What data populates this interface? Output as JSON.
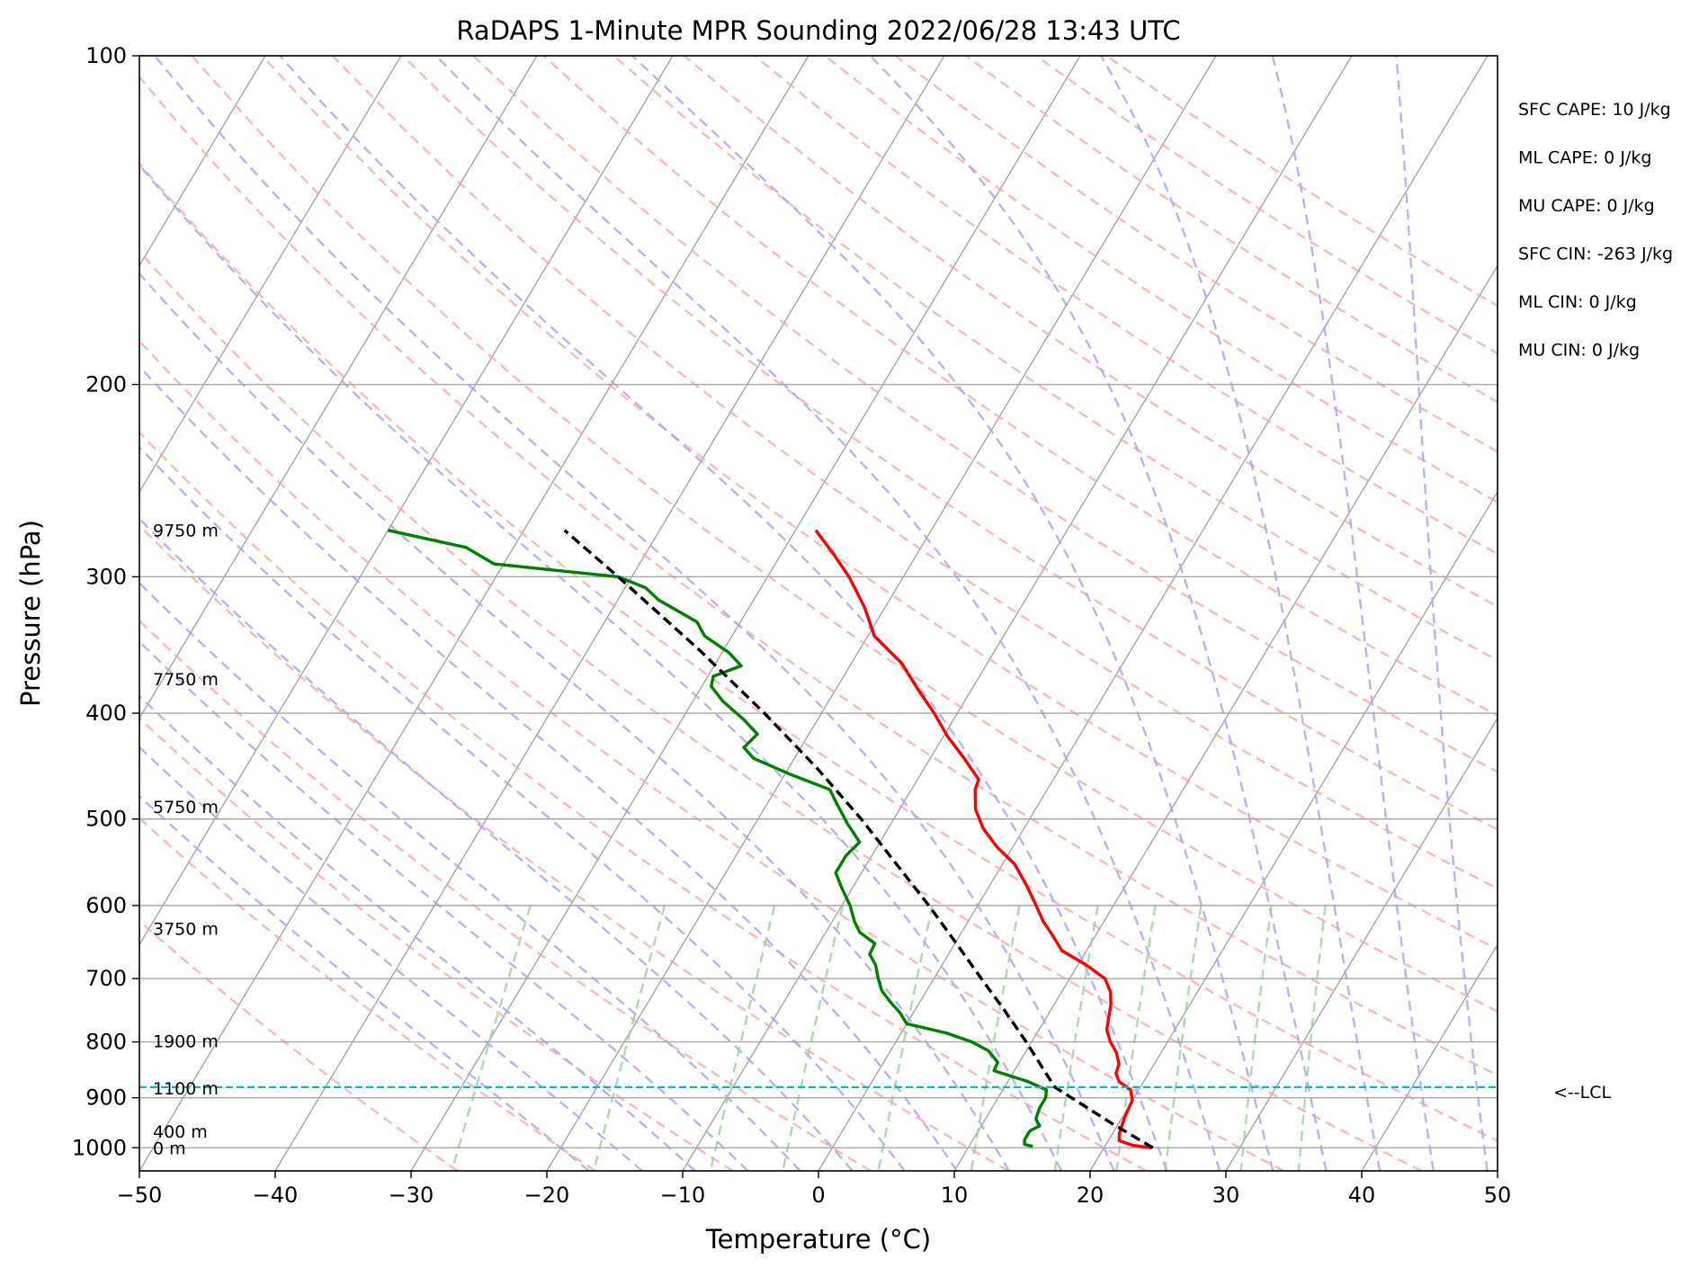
{
  "chart_data": {
    "type": "line",
    "chart_kind": "skew-T log-p sounding",
    "title": "RaDAPS 1-Minute MPR Sounding 2022/06/28 13:43 UTC",
    "xlabel": "Temperature (°C)",
    "ylabel": "Pressure (hPa)",
    "xlim": [
      -50,
      50
    ],
    "ylim": [
      1050,
      100
    ],
    "y_scale": "log",
    "x_ticks": [
      -50,
      -40,
      -30,
      -20,
      -10,
      0,
      10,
      20,
      30,
      40,
      50
    ],
    "x_tick_labels": [
      "−50",
      "−40",
      "−30",
      "−20",
      "−10",
      "0",
      "10",
      "20",
      "30",
      "40",
      "50"
    ],
    "y_ticks": [
      100,
      200,
      300,
      400,
      500,
      600,
      700,
      800,
      900,
      1000
    ],
    "y_tick_labels": [
      "100",
      "200",
      "300",
      "400",
      "500",
      "600",
      "700",
      "800",
      "900",
      "1000"
    ],
    "grid": true,
    "background_lines": {
      "isotherms": {
        "color": "#a0a0a0"
      },
      "dry_adiabats": {
        "color": "#f4a4a4",
        "style": "dashed"
      },
      "moist_adiabats": {
        "color": "#a8a8f0",
        "style": "dashed"
      },
      "mixing_ratio": {
        "color": "#9ccf9c",
        "style": "dashed"
      }
    },
    "series": [
      {
        "key": "temperature",
        "color": "#ff0000",
        "style": "solid",
        "points": [
          {
            "p": 1000,
            "t": 23.5
          },
          {
            "p": 995,
            "t": 22.0
          },
          {
            "p": 985,
            "t": 20.8
          },
          {
            "p": 970,
            "t": 20.5
          },
          {
            "p": 940,
            "t": 20.2
          },
          {
            "p": 905,
            "t": 20.0
          },
          {
            "p": 885,
            "t": 19.4
          },
          {
            "p": 870,
            "t": 18.2
          },
          {
            "p": 855,
            "t": 17.6
          },
          {
            "p": 838,
            "t": 17.4
          },
          {
            "p": 818,
            "t": 16.7
          },
          {
            "p": 800,
            "t": 15.8
          },
          {
            "p": 780,
            "t": 15.0
          },
          {
            "p": 760,
            "t": 14.6
          },
          {
            "p": 740,
            "t": 14.2
          },
          {
            "p": 720,
            "t": 13.6
          },
          {
            "p": 700,
            "t": 12.6
          },
          {
            "p": 680,
            "t": 10.6
          },
          {
            "p": 660,
            "t": 8.2
          },
          {
            "p": 640,
            "t": 6.9
          },
          {
            "p": 620,
            "t": 5.5
          },
          {
            "p": 600,
            "t": 4.3
          },
          {
            "p": 575,
            "t": 2.7
          },
          {
            "p": 550,
            "t": 0.9
          },
          {
            "p": 530,
            "t": -1.2
          },
          {
            "p": 510,
            "t": -3.0
          },
          {
            "p": 490,
            "t": -4.4
          },
          {
            "p": 470,
            "t": -5.3
          },
          {
            "p": 460,
            "t": -5.5
          },
          {
            "p": 440,
            "t": -7.5
          },
          {
            "p": 420,
            "t": -9.7
          },
          {
            "p": 400,
            "t": -11.7
          },
          {
            "p": 380,
            "t": -14.0
          },
          {
            "p": 360,
            "t": -16.3
          },
          {
            "p": 340,
            "t": -19.5
          },
          {
            "p": 320,
            "t": -21.5
          },
          {
            "p": 300,
            "t": -24.0
          },
          {
            "p": 285,
            "t": -26.3
          },
          {
            "p": 272,
            "t": -28.5
          }
        ]
      },
      {
        "key": "dewpoint",
        "color": "#008000",
        "style": "solid",
        "points": [
          {
            "p": 997,
            "t": 14.7
          },
          {
            "p": 993,
            "t": 14.0
          },
          {
            "p": 983,
            "t": 13.8
          },
          {
            "p": 965,
            "t": 13.8
          },
          {
            "p": 955,
            "t": 14.3
          },
          {
            "p": 948,
            "t": 14.0
          },
          {
            "p": 940,
            "t": 13.7
          },
          {
            "p": 920,
            "t": 13.5
          },
          {
            "p": 900,
            "t": 13.5
          },
          {
            "p": 885,
            "t": 13.2
          },
          {
            "p": 870,
            "t": 11.5
          },
          {
            "p": 850,
            "t": 8.5
          },
          {
            "p": 835,
            "t": 8.4
          },
          {
            "p": 815,
            "t": 7.2
          },
          {
            "p": 800,
            "t": 5.6
          },
          {
            "p": 785,
            "t": 3.3
          },
          {
            "p": 770,
            "t": 0.0
          },
          {
            "p": 752,
            "t": -1.0
          },
          {
            "p": 735,
            "t": -2.2
          },
          {
            "p": 718,
            "t": -3.3
          },
          {
            "p": 700,
            "t": -4.1
          },
          {
            "p": 680,
            "t": -4.9
          },
          {
            "p": 665,
            "t": -5.8
          },
          {
            "p": 650,
            "t": -5.9
          },
          {
            "p": 635,
            "t": -7.5
          },
          {
            "p": 620,
            "t": -8.4
          },
          {
            "p": 600,
            "t": -9.4
          },
          {
            "p": 578,
            "t": -10.8
          },
          {
            "p": 560,
            "t": -11.9
          },
          {
            "p": 540,
            "t": -11.9
          },
          {
            "p": 525,
            "t": -11.5
          },
          {
            "p": 505,
            "t": -13.2
          },
          {
            "p": 485,
            "t": -14.8
          },
          {
            "p": 470,
            "t": -16.0
          },
          {
            "p": 455,
            "t": -19.6
          },
          {
            "p": 440,
            "t": -23.0
          },
          {
            "p": 430,
            "t": -24.2
          },
          {
            "p": 418,
            "t": -23.8
          },
          {
            "p": 405,
            "t": -25.5
          },
          {
            "p": 390,
            "t": -27.8
          },
          {
            "p": 378,
            "t": -29.3
          },
          {
            "p": 370,
            "t": -29.6
          },
          {
            "p": 362,
            "t": -28.0
          },
          {
            "p": 352,
            "t": -29.5
          },
          {
            "p": 340,
            "t": -32.0
          },
          {
            "p": 330,
            "t": -33.2
          },
          {
            "p": 315,
            "t": -37.0
          },
          {
            "p": 307,
            "t": -38.5
          },
          {
            "p": 300,
            "t": -41.0
          },
          {
            "p": 292,
            "t": -50.7
          },
          {
            "p": 282,
            "t": -53.5
          },
          {
            "p": 272,
            "t": -60.0
          }
        ]
      },
      {
        "key": "parcel",
        "color": "#000000",
        "style": "dashed",
        "points": [
          {
            "p": 1000,
            "t": 23.6
          },
          {
            "p": 950,
            "t": 19.5
          },
          {
            "p": 880,
            "t": 13.7
          },
          {
            "p": 850,
            "t": 12.2
          },
          {
            "p": 800,
            "t": 9.6
          },
          {
            "p": 750,
            "t": 6.7
          },
          {
            "p": 700,
            "t": 3.5
          },
          {
            "p": 650,
            "t": 0.1
          },
          {
            "p": 600,
            "t": -3.6
          },
          {
            "p": 550,
            "t": -7.8
          },
          {
            "p": 500,
            "t": -12.4
          },
          {
            "p": 450,
            "t": -17.8
          },
          {
            "p": 400,
            "t": -24.2
          },
          {
            "p": 350,
            "t": -31.8
          },
          {
            "p": 300,
            "t": -41.0
          },
          {
            "p": 272,
            "t": -47.0
          }
        ]
      }
    ],
    "lcl": {
      "p": 880,
      "label": "<--LCL",
      "color": "#00bfbf"
    },
    "height_labels": [
      {
        "p": 272,
        "text": "9750 m"
      },
      {
        "p": 372,
        "text": "7750 m"
      },
      {
        "p": 487,
        "text": "5750 m"
      },
      {
        "p": 630,
        "text": "3750 m"
      },
      {
        "p": 798,
        "text": "1900 m"
      },
      {
        "p": 882,
        "text": "1100 m"
      },
      {
        "p": 966,
        "text": "400 m"
      },
      {
        "p": 1000,
        "text": "0 m"
      }
    ],
    "stats": [
      "SFC CAPE: 10 J/kg",
      "ML CAPE: 0 J/kg",
      "MU CAPE: 0 J/kg",
      "SFC CIN: -263 J/kg",
      "ML CIN: 0 J/kg",
      "MU CIN: 0 J/kg"
    ]
  }
}
